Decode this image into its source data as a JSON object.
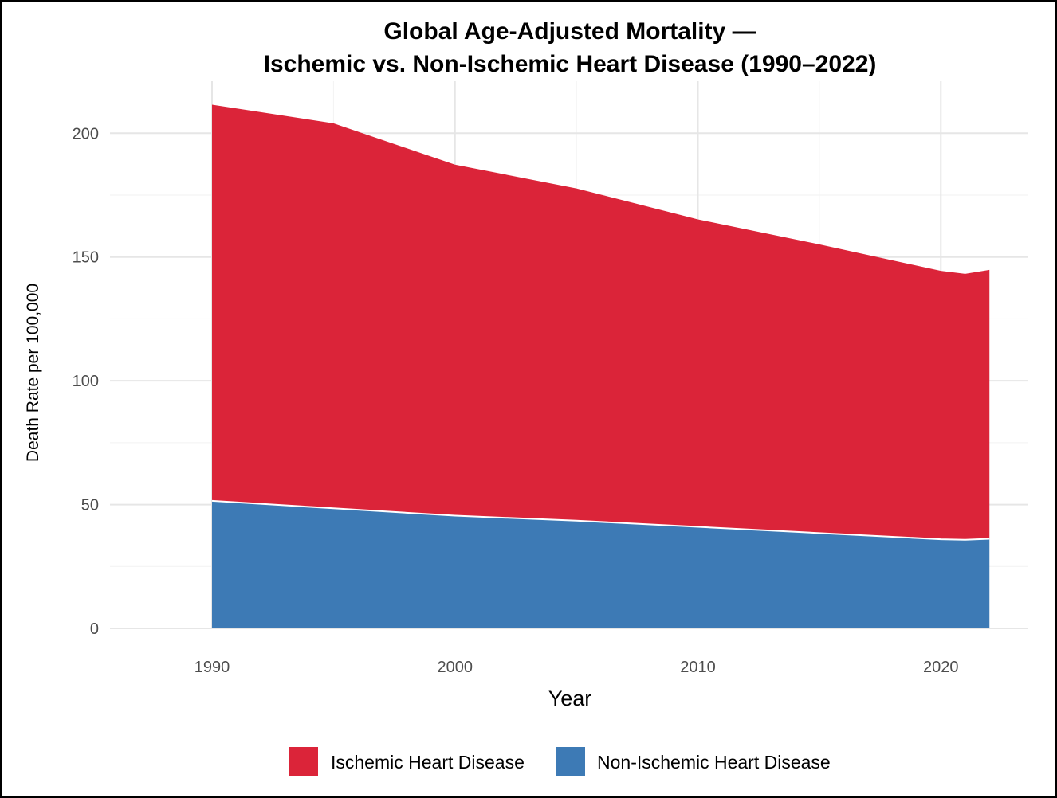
{
  "chart_data": {
    "type": "area",
    "stacked": true,
    "title_line1": "Global Age-Adjusted Mortality —",
    "title_line2": "Ischemic vs. Non-Ischemic Heart Disease (1990–2022)",
    "xlabel": "Year",
    "ylabel": "Death Rate per 100,000",
    "x": [
      1990,
      1995,
      2000,
      2005,
      2010,
      2015,
      2020,
      2021,
      2022
    ],
    "xlim": [
      1985.8,
      2023.6
    ],
    "ylim": [
      0,
      221
    ],
    "x_ticks": [
      1990,
      2000,
      2010,
      2020
    ],
    "y_ticks": [
      0,
      50,
      100,
      150,
      200
    ],
    "grid": true,
    "legend_position": "bottom",
    "series": [
      {
        "name": "Non-Ischemic Heart Disease",
        "color": "#3d7ab5",
        "values": [
          51.5,
          48.5,
          45.5,
          43.5,
          41.0,
          38.5,
          36.0,
          35.8,
          36.2
        ]
      },
      {
        "name": "Ischemic Heart Disease",
        "color": "#db2439",
        "values": [
          160.0,
          155.5,
          141.8,
          134.2,
          124.2,
          116.6,
          108.4,
          107.4,
          108.6
        ]
      }
    ]
  }
}
